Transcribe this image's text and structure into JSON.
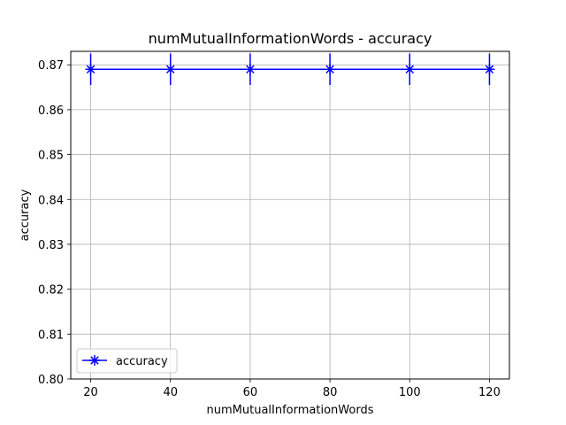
{
  "chart_data": {
    "type": "line",
    "title": "numMutualInformationWords - accuracy",
    "xlabel": "numMutualInformationWords",
    "ylabel": "accuracy",
    "x": [
      20,
      40,
      60,
      80,
      100,
      120
    ],
    "xlim": [
      15,
      125
    ],
    "ylim": [
      0.8,
      0.873
    ],
    "xticks": [
      20,
      40,
      60,
      80,
      100,
      120
    ],
    "yticks": [
      0.8,
      0.81,
      0.82,
      0.83,
      0.84,
      0.85,
      0.86,
      0.87
    ],
    "ytick_labels": [
      "0.80",
      "0.81",
      "0.82",
      "0.83",
      "0.84",
      "0.85",
      "0.86",
      "0.87"
    ],
    "grid": true,
    "legend_position": "lower-left",
    "series": [
      {
        "name": "accuracy",
        "color": "#0000ff",
        "marker": "x-star",
        "values": [
          0.869,
          0.869,
          0.869,
          0.869,
          0.869,
          0.869
        ],
        "error": [
          0.0035,
          0.0035,
          0.0035,
          0.0035,
          0.0035,
          0.0035
        ]
      }
    ]
  }
}
